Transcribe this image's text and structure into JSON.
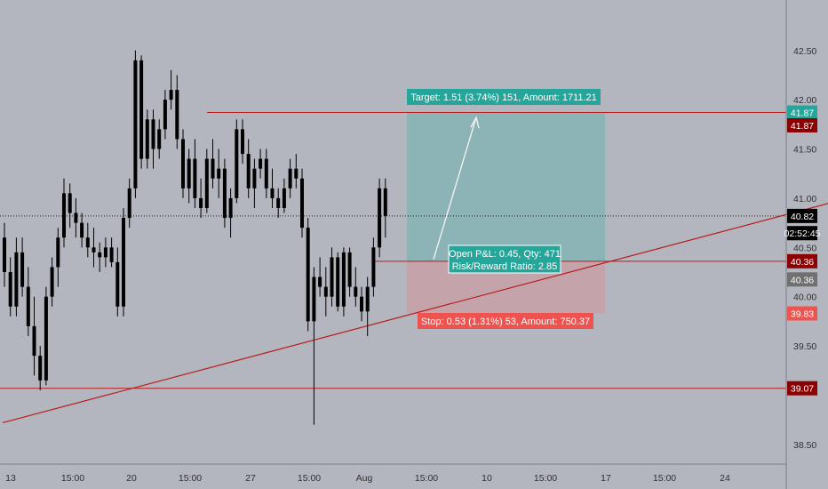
{
  "chart_data": {
    "type": "candlestick",
    "price_axis": {
      "range": [
        38.3,
        42.85
      ],
      "ticks": [
        "42.50",
        "42.00",
        "41.50",
        "41.00",
        "40.50",
        "40.00",
        "39.50",
        "38.50"
      ],
      "tick_values": [
        42.5,
        42.0,
        41.5,
        41.0,
        40.5,
        40.0,
        39.5,
        38.5
      ]
    },
    "time_axis": {
      "labels": [
        "13",
        "15:00",
        "20",
        "15:00",
        "27",
        "15:00",
        "Aug",
        "15:00",
        "10",
        "15:00",
        "17",
        "15:00",
        "24"
      ]
    },
    "horizontal_levels": [
      {
        "name": "upper-resistance",
        "price": 41.87,
        "label": "41.87"
      },
      {
        "name": "entry-level",
        "price": 40.36,
        "label": "40.36"
      },
      {
        "name": "lower-support",
        "price": 39.07,
        "label": "39.07"
      }
    ],
    "current_price": {
      "value": 40.82,
      "label": "40.82",
      "countdown": "02:52:45"
    },
    "price_badges": [
      {
        "label": "41.87",
        "price": 41.87,
        "bg": "#26a69a"
      },
      {
        "label": "41.87",
        "price": 41.74,
        "bg": "#8b0000"
      },
      {
        "label": "40.82",
        "price": 40.82,
        "bg": "#000000"
      },
      {
        "label": "02:52:45",
        "price": 40.645,
        "bg": "#000000"
      },
      {
        "label": "40.36",
        "price": 40.36,
        "bg": "#8b0000"
      },
      {
        "label": "40.36",
        "price": 40.175,
        "bg": "#707070"
      },
      {
        "label": "39.83",
        "price": 39.83,
        "bg": "#ef5350"
      },
      {
        "label": "39.07",
        "price": 39.07,
        "bg": "#8b0000"
      }
    ],
    "trend_line": {
      "start": {
        "bar": 0,
        "price": 38.72
      },
      "end": {
        "bar": 147,
        "price": 41.08
      }
    },
    "position": {
      "direction": "long",
      "entry": 40.36,
      "target": 41.87,
      "stop": 39.83,
      "target_label": "Target: 1.51 (3.74%) 151, Amount: 1711.21",
      "stop_label": "Stop: 0.53 (1.31%) 53, Amount: 750.37",
      "pnl_label": "Open P&L: 0.45, Qty: 471",
      "rr_label": "Risk/Reward Ratio: 2.85"
    },
    "candles": [
      [
        40.6,
        40.75,
        40.1,
        40.25
      ],
      [
        40.25,
        40.4,
        39.8,
        39.9
      ],
      [
        39.9,
        40.6,
        39.8,
        40.45
      ],
      [
        40.45,
        40.6,
        40.0,
        40.1
      ],
      [
        40.1,
        40.3,
        39.6,
        39.7
      ],
      [
        39.7,
        40.0,
        39.2,
        39.4
      ],
      [
        39.4,
        39.5,
        39.05,
        39.15
      ],
      [
        39.15,
        40.1,
        39.1,
        40.0
      ],
      [
        40.0,
        40.4,
        39.9,
        40.3
      ],
      [
        40.3,
        40.7,
        40.1,
        40.6
      ],
      [
        40.6,
        41.2,
        40.5,
        41.05
      ],
      [
        41.05,
        41.15,
        40.7,
        40.85
      ],
      [
        40.85,
        41.0,
        40.6,
        40.75
      ],
      [
        40.75,
        40.85,
        40.5,
        40.6
      ],
      [
        40.6,
        40.75,
        40.4,
        40.5
      ],
      [
        40.5,
        40.7,
        40.3,
        40.45
      ],
      [
        40.45,
        40.55,
        40.25,
        40.4
      ],
      [
        40.4,
        40.6,
        40.3,
        40.5
      ],
      [
        40.5,
        40.6,
        40.3,
        40.35
      ],
      [
        40.35,
        40.5,
        39.8,
        39.9
      ],
      [
        39.9,
        40.9,
        39.8,
        40.8
      ],
      [
        40.8,
        41.2,
        40.7,
        41.1
      ],
      [
        41.1,
        42.5,
        41.0,
        42.4
      ],
      [
        42.4,
        42.45,
        41.3,
        41.4
      ],
      [
        41.4,
        41.9,
        41.3,
        41.8
      ],
      [
        41.8,
        41.9,
        41.3,
        41.5
      ],
      [
        41.5,
        41.8,
        41.4,
        41.7
      ],
      [
        41.7,
        42.1,
        41.6,
        42.0
      ],
      [
        42.0,
        42.3,
        41.9,
        42.1
      ],
      [
        42.1,
        42.25,
        41.5,
        41.6
      ],
      [
        41.6,
        41.7,
        41.0,
        41.1
      ],
      [
        41.1,
        41.5,
        40.95,
        41.4
      ],
      [
        41.4,
        41.6,
        40.9,
        41.0
      ],
      [
        41.0,
        41.2,
        40.8,
        40.9
      ],
      [
        40.9,
        41.5,
        40.85,
        41.4
      ],
      [
        41.4,
        41.6,
        41.1,
        41.2
      ],
      [
        41.2,
        41.5,
        41.0,
        41.3
      ],
      [
        41.3,
        41.4,
        40.7,
        40.8
      ],
      [
        40.8,
        41.1,
        40.6,
        41.0
      ],
      [
        41.0,
        41.8,
        40.95,
        41.7
      ],
      [
        41.7,
        41.8,
        41.35,
        41.45
      ],
      [
        41.45,
        41.6,
        41.0,
        41.1
      ],
      [
        41.1,
        41.4,
        40.9,
        41.3
      ],
      [
        41.3,
        41.5,
        41.2,
        41.4
      ],
      [
        41.4,
        41.5,
        41.0,
        41.1
      ],
      [
        41.1,
        41.3,
        40.9,
        41.0
      ],
      [
        41.0,
        41.1,
        40.8,
        40.9
      ],
      [
        40.9,
        41.2,
        40.85,
        41.1
      ],
      [
        41.1,
        41.4,
        41.0,
        41.3
      ],
      [
        41.3,
        41.45,
        41.1,
        41.2
      ],
      [
        41.2,
        41.3,
        40.6,
        40.7
      ],
      [
        40.7,
        40.8,
        39.65,
        39.75
      ],
      [
        39.75,
        40.3,
        38.7,
        40.2
      ],
      [
        40.2,
        40.4,
        40.0,
        40.1
      ],
      [
        40.1,
        40.3,
        39.8,
        40.0
      ],
      [
        40.0,
        40.5,
        39.9,
        40.4
      ],
      [
        40.4,
        40.45,
        39.85,
        39.9
      ],
      [
        39.9,
        40.5,
        39.8,
        40.45
      ],
      [
        40.45,
        40.5,
        40.0,
        40.1
      ],
      [
        40.1,
        40.3,
        39.9,
        40.0
      ],
      [
        40.0,
        40.1,
        39.75,
        39.85
      ],
      [
        39.85,
        40.2,
        39.6,
        40.1
      ],
      [
        40.1,
        40.6,
        40.0,
        40.5
      ],
      [
        40.5,
        41.2,
        40.4,
        41.1
      ],
      [
        41.1,
        41.2,
        40.6,
        40.82
      ]
    ]
  }
}
